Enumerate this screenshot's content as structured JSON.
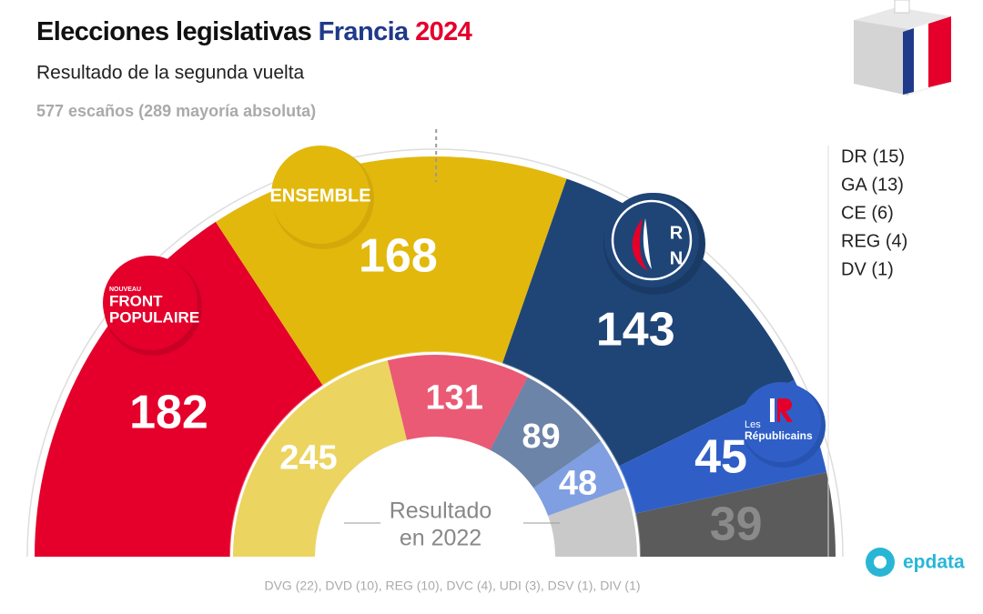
{
  "title": {
    "main": "Elecciones legislativas",
    "country": "Francia",
    "year": "2024"
  },
  "subtitle": "Resultado de la segunda vuelta",
  "seats_note": "577 escaños (289 mayoría absoluta)",
  "chart_data": {
    "type": "parliament",
    "total": 577,
    "majority": 289,
    "outer": {
      "values": [
        182,
        168,
        143,
        45,
        39
      ],
      "colors": [
        "#e4002b",
        "#e2b80d",
        "#1f4577",
        "#2f5fc6",
        "#5b5b5b"
      ],
      "label_colors": [
        "#ffffff",
        "#ffffff",
        "#ffffff",
        "#ffffff",
        "#8a8a8a"
      ]
    },
    "inner": {
      "values": [
        245,
        131,
        89,
        48
      ],
      "colors": [
        "#ecd461",
        "#ea5a75",
        "#6c84a8",
        "#7f9fe2"
      ],
      "label_colors": [
        "#ffffff",
        "#ffffff",
        "#ffffff",
        "#ffffff"
      ]
    },
    "inner_label": [
      "Resultado",
      "en 2022"
    ]
  },
  "logos": {
    "nfp": [
      "NOUVEAU",
      "FRONT",
      "POPULAIRE"
    ],
    "ensemble": "ENSEMBLE",
    "rn": [
      "R",
      "N"
    ],
    "lr": [
      "Les",
      "Républicains"
    ]
  },
  "others_2024": [
    "DR (15)",
    "GA (13)",
    "CE (6)",
    "REG (4)",
    "DV (1)"
  ],
  "others_2022": "DVG (22), DVD (10), REG (10), DVC (4), UDI (3), DSV (1), DIV (1)",
  "brand": "epdata"
}
